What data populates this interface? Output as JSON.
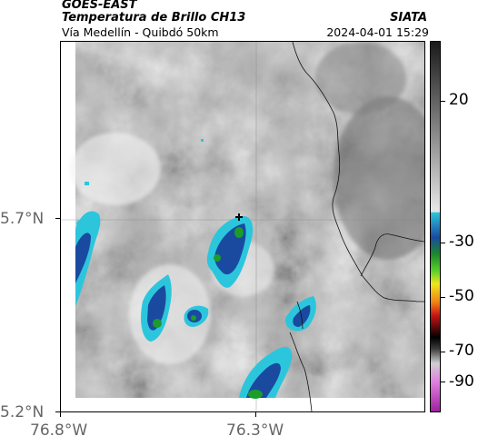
{
  "header": {
    "satellite": "GOES-EAST",
    "product": "Temperatura de Brillo CH13",
    "agency": "SIATA",
    "route": "Vía Medellín - Quibdó 50km",
    "datetime": "2024-04-01 15:29"
  },
  "map": {
    "lon_ticks": [
      "76.8°W",
      "76.3°W"
    ],
    "lat_ticks": [
      "5.7°N",
      "5.2°N"
    ],
    "marker_icon": "plus-marker-icon"
  },
  "colorbar": {
    "labels": [
      "20",
      "-30",
      "-50",
      "-70",
      "-90"
    ],
    "colors": {
      "warm_dark": "#1a1a1a",
      "warm_light": "#e8e8e8",
      "cyan": "#2cc6dc",
      "blue": "#1a4aa0",
      "green": "#1c9c2a",
      "yellow": "#f0e61c",
      "orange": "#f08214",
      "red": "#c81414",
      "black": "#000000",
      "magenta": "#c846c8"
    }
  }
}
